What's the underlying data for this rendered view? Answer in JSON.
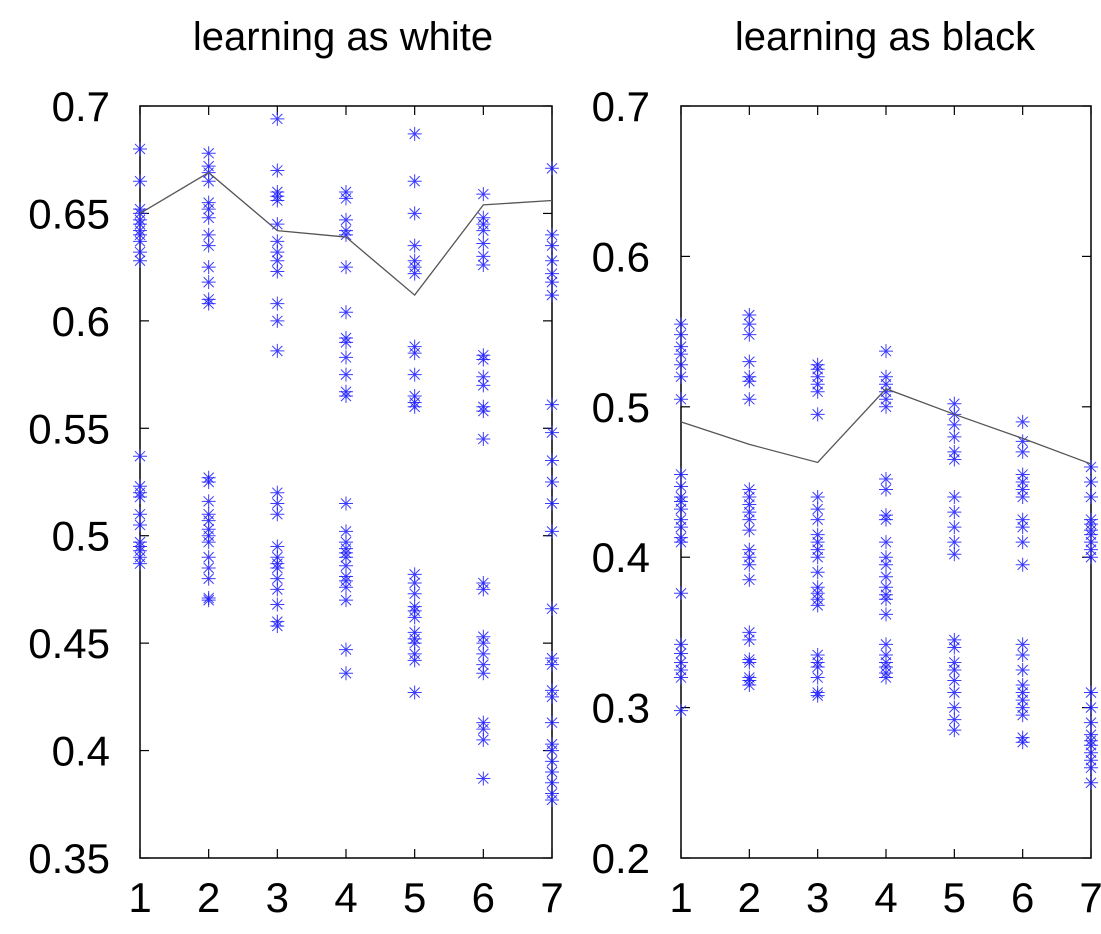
{
  "chart_data": [
    {
      "type": "scatter",
      "title": "learning as white",
      "xlabel": "",
      "ylabel": "",
      "xlim": [
        1,
        7
      ],
      "ylim": [
        0.35,
        0.7
      ],
      "x_ticks": [
        "1",
        "2",
        "3",
        "4",
        "5",
        "6",
        "7"
      ],
      "y_ticks": [
        "0.35",
        "0.4",
        "0.45",
        "0.5",
        "0.55",
        "0.6",
        "0.65",
        "0.7"
      ],
      "grid": false,
      "legend": "none",
      "colors": {
        "points": "#1a1aff",
        "line": "#555555",
        "axes": "#000000"
      },
      "points": [
        {
          "x": 1,
          "y": [
            0.68,
            0.665,
            0.652,
            0.65,
            0.647,
            0.645,
            0.642,
            0.64,
            0.637,
            0.632,
            0.628,
            0.537,
            0.523,
            0.52,
            0.518,
            0.51,
            0.505,
            0.497,
            0.495,
            0.493,
            0.49,
            0.487
          ]
        },
        {
          "x": 2,
          "y": [
            0.678,
            0.672,
            0.669,
            0.665,
            0.655,
            0.652,
            0.648,
            0.64,
            0.635,
            0.625,
            0.618,
            0.61,
            0.608,
            0.527,
            0.525,
            0.516,
            0.51,
            0.507,
            0.503,
            0.5,
            0.497,
            0.49,
            0.485,
            0.48,
            0.471,
            0.47
          ]
        },
        {
          "x": 3,
          "y": [
            0.694,
            0.67,
            0.66,
            0.658,
            0.656,
            0.645,
            0.637,
            0.632,
            0.628,
            0.623,
            0.608,
            0.6,
            0.586,
            0.52,
            0.515,
            0.51,
            0.495,
            0.49,
            0.487,
            0.485,
            0.48,
            0.475,
            0.468,
            0.46,
            0.458
          ]
        },
        {
          "x": 4,
          "y": [
            0.66,
            0.657,
            0.647,
            0.642,
            0.64,
            0.625,
            0.604,
            0.592,
            0.59,
            0.583,
            0.575,
            0.567,
            0.565,
            0.515,
            0.502,
            0.497,
            0.494,
            0.492,
            0.49,
            0.486,
            0.481,
            0.479,
            0.476,
            0.47,
            0.447,
            0.436
          ]
        },
        {
          "x": 5,
          "y": [
            0.687,
            0.665,
            0.65,
            0.635,
            0.628,
            0.625,
            0.622,
            0.588,
            0.585,
            0.575,
            0.565,
            0.562,
            0.56,
            0.482,
            0.478,
            0.473,
            0.467,
            0.465,
            0.462,
            0.455,
            0.452,
            0.45,
            0.445,
            0.442,
            0.427
          ]
        },
        {
          "x": 6,
          "y": [
            0.659,
            0.648,
            0.645,
            0.642,
            0.636,
            0.63,
            0.626,
            0.584,
            0.582,
            0.574,
            0.57,
            0.56,
            0.558,
            0.545,
            0.478,
            0.475,
            0.453,
            0.45,
            0.445,
            0.44,
            0.436,
            0.413,
            0.41,
            0.405,
            0.387
          ]
        },
        {
          "x": 7,
          "y": [
            0.671,
            0.64,
            0.635,
            0.628,
            0.622,
            0.618,
            0.612,
            0.561,
            0.548,
            0.535,
            0.525,
            0.515,
            0.502,
            0.466,
            0.443,
            0.44,
            0.428,
            0.425,
            0.413,
            0.403,
            0.4,
            0.395,
            0.39,
            0.385,
            0.38,
            0.377
          ]
        }
      ],
      "line": {
        "x": [
          1,
          2,
          3,
          4,
          5,
          6,
          7
        ],
        "y": [
          0.65,
          0.669,
          0.642,
          0.639,
          0.612,
          0.654,
          0.656
        ]
      }
    },
    {
      "type": "scatter",
      "title": "learning as black",
      "xlabel": "",
      "ylabel": "",
      "xlim": [
        1,
        7
      ],
      "ylim": [
        0.2,
        0.7
      ],
      "x_ticks": [
        "1",
        "2",
        "3",
        "4",
        "5",
        "6",
        "7"
      ],
      "y_ticks": [
        "0.2",
        "0.3",
        "0.4",
        "0.5",
        "0.6",
        "0.7"
      ],
      "grid": false,
      "legend": "none",
      "colors": {
        "points": "#1a1aff",
        "line": "#555555",
        "axes": "#000000"
      },
      "points": [
        {
          "x": 1,
          "y": [
            0.555,
            0.548,
            0.54,
            0.535,
            0.528,
            0.52,
            0.505,
            0.455,
            0.447,
            0.44,
            0.437,
            0.432,
            0.425,
            0.42,
            0.413,
            0.41,
            0.376,
            0.342,
            0.336,
            0.33,
            0.325,
            0.32,
            0.298
          ]
        },
        {
          "x": 2,
          "y": [
            0.561,
            0.555,
            0.548,
            0.53,
            0.52,
            0.517,
            0.505,
            0.445,
            0.44,
            0.435,
            0.43,
            0.425,
            0.418,
            0.405,
            0.4,
            0.395,
            0.385,
            0.35,
            0.345,
            0.332,
            0.33,
            0.32,
            0.318,
            0.315
          ]
        },
        {
          "x": 3,
          "y": [
            0.528,
            0.525,
            0.52,
            0.515,
            0.51,
            0.495,
            0.44,
            0.432,
            0.425,
            0.415,
            0.41,
            0.405,
            0.4,
            0.39,
            0.38,
            0.376,
            0.372,
            0.368,
            0.335,
            0.33,
            0.327,
            0.32,
            0.31,
            0.308
          ]
        },
        {
          "x": 4,
          "y": [
            0.537,
            0.52,
            0.515,
            0.51,
            0.505,
            0.5,
            0.452,
            0.445,
            0.428,
            0.425,
            0.41,
            0.4,
            0.395,
            0.387,
            0.38,
            0.375,
            0.372,
            0.362,
            0.342,
            0.335,
            0.33,
            0.327,
            0.323,
            0.32
          ]
        },
        {
          "x": 5,
          "y": [
            0.502,
            0.495,
            0.488,
            0.48,
            0.47,
            0.465,
            0.44,
            0.43,
            0.42,
            0.41,
            0.402,
            0.345,
            0.34,
            0.33,
            0.325,
            0.318,
            0.31,
            0.3,
            0.292,
            0.285
          ]
        },
        {
          "x": 6,
          "y": [
            0.49,
            0.477,
            0.47,
            0.455,
            0.45,
            0.445,
            0.44,
            0.425,
            0.42,
            0.41,
            0.395,
            0.342,
            0.335,
            0.325,
            0.315,
            0.31,
            0.305,
            0.3,
            0.295,
            0.28,
            0.277
          ]
        },
        {
          "x": 7,
          "y": [
            0.46,
            0.45,
            0.44,
            0.425,
            0.422,
            0.418,
            0.415,
            0.41,
            0.405,
            0.4,
            0.31,
            0.3,
            0.29,
            0.282,
            0.278,
            0.275,
            0.27,
            0.265,
            0.26,
            0.25
          ]
        }
      ],
      "line": {
        "x": [
          1,
          2,
          3,
          4,
          5,
          6,
          7
        ],
        "y": [
          0.49,
          0.475,
          0.463,
          0.512,
          0.495,
          0.479,
          0.462
        ]
      }
    }
  ]
}
